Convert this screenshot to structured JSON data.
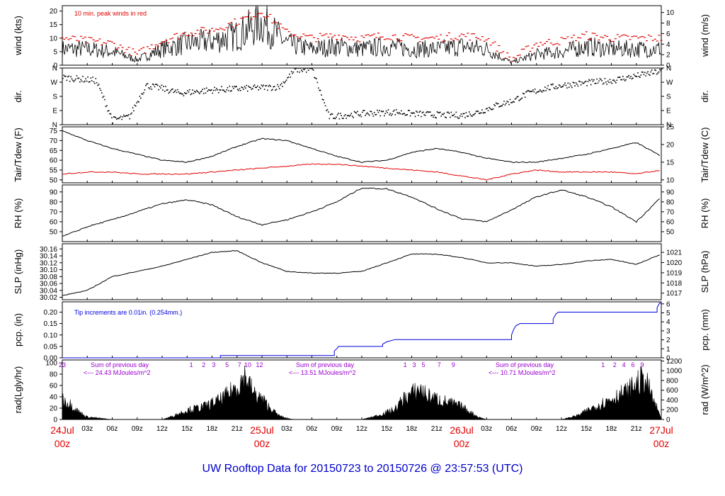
{
  "title": "UW Rooftop Data for 20150723  to  20150726 @ 23:57:53  (UTC)",
  "colors": {
    "series": "#000000",
    "peak": "#e00000",
    "dewpoint": "#e00000",
    "precip": "#0000dd",
    "radiation_text": "#9900cc",
    "title": "#0000cc",
    "day_label": "#e00000"
  },
  "time_axis": {
    "hour_labels": [
      "03z",
      "06z",
      "09z",
      "12z",
      "15z",
      "18z",
      "21z",
      "03z",
      "06z",
      "09z",
      "12z",
      "15z",
      "18z",
      "21z",
      "03z",
      "06z",
      "09z",
      "12z",
      "15z",
      "18z",
      "21z"
    ],
    "day_labels": [
      {
        "day": "24Jul",
        "time": "00z"
      },
      {
        "day": "25Jul",
        "time": "00z"
      },
      {
        "day": "26Jul",
        "time": "00z"
      },
      {
        "day": "27Jul",
        "time": "00z"
      }
    ]
  },
  "chart_data": [
    {
      "type": "line",
      "id": "wind",
      "ylabel": "wind (kts)",
      "ylabel_right": "wind (m/s)",
      "ylim": [
        0,
        22
      ],
      "yticks": [
        0,
        5,
        10,
        15,
        20
      ],
      "ylim_right": [
        0,
        11.3
      ],
      "yticks_right": [
        0,
        2,
        4,
        6,
        8,
        10
      ],
      "annotation": "10 min. peak winds in red",
      "x_hours": [
        0,
        3,
        6,
        9,
        12,
        15,
        18,
        21,
        24,
        27,
        30,
        33,
        36,
        39,
        42,
        45,
        48,
        51,
        54,
        57,
        60,
        63,
        66,
        69,
        72
      ],
      "series": [
        {
          "name": "wind speed",
          "values": [
            6,
            6,
            5,
            2,
            6,
            8,
            9,
            11,
            16,
            8,
            6,
            7,
            6,
            7,
            6,
            6,
            7,
            6,
            1,
            4,
            5,
            7,
            6,
            6,
            6
          ]
        },
        {
          "name": "10 min. peak winds",
          "values": [
            10,
            9,
            8,
            4,
            9,
            12,
            13,
            16,
            20,
            12,
            10,
            11,
            10,
            11,
            10,
            10,
            11,
            10,
            2,
            8,
            9,
            11,
            10,
            10,
            10
          ]
        }
      ]
    },
    {
      "type": "scatter",
      "id": "dir",
      "ylabel": "dir.",
      "ylabel_right": "dir.",
      "ylim": [
        0,
        360
      ],
      "ytick_labels": [
        "N",
        "E",
        "S",
        "W",
        "N"
      ],
      "x_hours": [
        0,
        2,
        4,
        6,
        8,
        10,
        12,
        14,
        16,
        18,
        20,
        22,
        24,
        26,
        28,
        30,
        32,
        34,
        36,
        38,
        40,
        42,
        44,
        46,
        48,
        50,
        52,
        54,
        56,
        58,
        60,
        62,
        64,
        66,
        68,
        70,
        72
      ],
      "values": [
        300,
        290,
        280,
        30,
        50,
        250,
        230,
        200,
        210,
        220,
        225,
        230,
        235,
        240,
        350,
        350,
        50,
        60,
        70,
        75,
        80,
        70,
        65,
        60,
        60,
        80,
        120,
        150,
        200,
        230,
        250,
        260,
        270,
        280,
        300,
        320,
        340
      ]
    },
    {
      "type": "line",
      "id": "temp",
      "ylabel": "Tair/Tdew (F)",
      "ylabel_right": "Tair/Tdew (C)",
      "ylim": [
        48.5,
        77
      ],
      "yticks": [
        50,
        55,
        60,
        65,
        70,
        75
      ],
      "yticks_right": [
        10,
        15,
        20,
        25
      ],
      "x_hours": [
        0,
        3,
        6,
        9,
        12,
        15,
        18,
        21,
        24,
        27,
        30,
        33,
        36,
        39,
        42,
        45,
        48,
        51,
        54,
        57,
        60,
        63,
        66,
        69,
        72
      ],
      "series": [
        {
          "name": "Tair",
          "values": [
            75,
            70,
            66,
            63,
            60,
            59,
            62,
            67,
            71,
            70,
            66,
            62,
            59,
            60,
            64,
            66,
            64,
            61,
            59,
            59,
            61,
            63,
            66,
            69,
            62
          ]
        },
        {
          "name": "Tdew",
          "values": [
            53,
            54,
            54,
            53,
            53,
            53,
            54,
            55,
            56,
            57,
            58,
            58,
            57,
            56,
            55,
            54,
            52,
            50,
            53,
            55,
            54,
            54,
            54,
            53,
            55
          ]
        }
      ]
    },
    {
      "type": "line",
      "id": "rh",
      "ylabel": "RH (%)",
      "ylabel_right": "RH (%)",
      "ylim": [
        40,
        97
      ],
      "yticks": [
        50,
        60,
        70,
        80,
        90
      ],
      "x_hours": [
        0,
        3,
        6,
        9,
        12,
        15,
        18,
        21,
        24,
        27,
        30,
        33,
        36,
        39,
        42,
        45,
        48,
        51,
        54,
        57,
        60,
        63,
        66,
        69,
        72
      ],
      "series": [
        {
          "name": "RH",
          "values": [
            45,
            55,
            62,
            70,
            78,
            82,
            77,
            65,
            57,
            62,
            70,
            80,
            94,
            93,
            85,
            73,
            63,
            60,
            72,
            85,
            92,
            85,
            75,
            60,
            85
          ]
        }
      ]
    },
    {
      "type": "line",
      "id": "slp",
      "ylabel": "SLP (inHg)",
      "ylabel_right": "SLP (hPa)",
      "ylim": [
        30.013,
        30.175
      ],
      "yticks": [
        30.02,
        30.04,
        30.06,
        30.08,
        30.1,
        30.12,
        30.14,
        30.16
      ],
      "ytick_labels": [
        "30.02",
        "30.04",
        "30.06",
        "30.08",
        "30.10",
        "30.12",
        "30.14",
        "30.16"
      ],
      "yticks_right": [
        1017,
        1018,
        1019,
        1020,
        1021
      ],
      "x_hours": [
        0,
        3,
        6,
        9,
        12,
        15,
        18,
        21,
        24,
        27,
        30,
        33,
        36,
        39,
        42,
        45,
        48,
        51,
        54,
        57,
        60,
        63,
        66,
        69,
        72
      ],
      "series": [
        {
          "name": "SLP",
          "values": [
            30.025,
            30.04,
            30.08,
            30.095,
            30.11,
            30.13,
            30.15,
            30.155,
            30.12,
            30.095,
            30.09,
            30.09,
            30.095,
            30.12,
            30.145,
            30.145,
            30.135,
            30.12,
            30.12,
            30.11,
            30.115,
            30.125,
            30.13,
            30.115,
            30.145
          ]
        }
      ]
    },
    {
      "type": "line",
      "id": "pcp",
      "ylabel": "pcp. (in)",
      "ylabel_right": "pcp. (mm)",
      "ylim": [
        0,
        0.245
      ],
      "yticks": [
        0,
        0.05,
        0.1,
        0.15,
        0.2
      ],
      "ytick_labels": [
        "0.00",
        "0.05",
        "0.10",
        "0.15",
        "0.20"
      ],
      "yticks_right": [
        0,
        1,
        2,
        3,
        4,
        5,
        6
      ],
      "annotation": "Tip increments are 0.01in. (0.254mm.)",
      "steps": [
        [
          0,
          0
        ],
        [
          19,
          0
        ],
        [
          19,
          0.01
        ],
        [
          32.7,
          0.01
        ],
        [
          32.7,
          0.03
        ],
        [
          33,
          0.04
        ],
        [
          33.2,
          0.05
        ],
        [
          38.5,
          0.05
        ],
        [
          38.5,
          0.06
        ],
        [
          39,
          0.07
        ],
        [
          40,
          0.08
        ],
        [
          54,
          0.08
        ],
        [
          54,
          0.1
        ],
        [
          54.2,
          0.12
        ],
        [
          54.5,
          0.14
        ],
        [
          55,
          0.15
        ],
        [
          59,
          0.15
        ],
        [
          59,
          0.17
        ],
        [
          59.3,
          0.19
        ],
        [
          59.6,
          0.2
        ],
        [
          71.5,
          0.2
        ],
        [
          71.5,
          0.22
        ],
        [
          71.8,
          0.24
        ],
        [
          72,
          0.24
        ]
      ]
    },
    {
      "type": "area",
      "id": "rad",
      "ylabel": "rad(Lgly/hr)",
      "ylabel_right": "rad (W/m^2)",
      "ylim": [
        0,
        105
      ],
      "yticks": [
        0,
        20,
        40,
        60,
        80,
        100
      ],
      "yticks_right": [
        0,
        200,
        400,
        600,
        800,
        1000,
        1200
      ],
      "daily_sums": [
        {
          "label": "Sum of previous day",
          "value": "<--- 24.43 MJoules/m^2"
        },
        {
          "label": "Sum of previous day",
          "value": "<--- 13.51 MJoules/m^2"
        },
        {
          "label": "Sum of previous day",
          "value": "<--- 10.71 MJoules/m^2"
        }
      ],
      "hour_marks": [
        {
          "t": 0,
          "label": "23"
        },
        {
          "t": 15.5,
          "label": "1"
        },
        {
          "t": 17,
          "label": "2"
        },
        {
          "t": 18.2,
          "label": "3"
        },
        {
          "t": 19.8,
          "label": "5"
        },
        {
          "t": 21.3,
          "label": "7"
        },
        {
          "t": 22.3,
          "label": "10"
        },
        {
          "t": 23.7,
          "label": "12"
        },
        {
          "t": 41.2,
          "label": "1"
        },
        {
          "t": 42.3,
          "label": "3"
        },
        {
          "t": 43.4,
          "label": "5"
        },
        {
          "t": 45.3,
          "label": "7"
        },
        {
          "t": 47,
          "label": "9"
        },
        {
          "t": 65,
          "label": "1"
        },
        {
          "t": 66.4,
          "label": "2"
        },
        {
          "t": 67.5,
          "label": "4"
        },
        {
          "t": 68.6,
          "label": "6"
        },
        {
          "t": 69.7,
          "label": "9"
        }
      ],
      "x_hours": [
        0,
        1,
        2,
        3,
        6,
        12,
        13,
        15,
        17,
        19,
        20,
        21,
        22,
        23,
        24,
        25,
        26,
        27,
        28,
        36,
        38,
        40,
        41,
        42,
        43,
        44,
        45,
        46,
        47,
        48,
        49,
        50,
        51,
        52,
        60,
        62,
        64,
        66,
        67,
        68,
        69,
        70,
        71,
        72
      ],
      "values": [
        40,
        30,
        15,
        5,
        0,
        0,
        5,
        18,
        25,
        38,
        50,
        65,
        85,
        50,
        40,
        22,
        8,
        2,
        0,
        0,
        8,
        20,
        40,
        50,
        60,
        45,
        40,
        35,
        30,
        25,
        15,
        5,
        0,
        0,
        0,
        8,
        25,
        40,
        48,
        55,
        70,
        80,
        40,
        2
      ]
    }
  ]
}
